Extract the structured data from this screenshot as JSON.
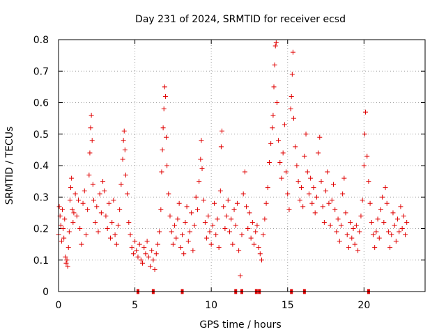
{
  "chart_data": {
    "type": "scatter",
    "title": "Day 231 of 2024, SRMTID for receiver ecsd",
    "xlabel": "GPS time / hours",
    "ylabel": "SRMTID / TECUs",
    "xlim": [
      0,
      24
    ],
    "ylim": [
      0,
      0.8
    ],
    "x_ticks": [
      0,
      5,
      10,
      15,
      20
    ],
    "x_tick_labels": [
      "0",
      "5",
      "10",
      "15",
      "20"
    ],
    "y_ticks": [
      0,
      0.1,
      0.2,
      0.3,
      0.4,
      0.5,
      0.6,
      0.7,
      0.8
    ],
    "y_tick_labels": [
      "0",
      "0.1",
      "0.2",
      "0.3",
      "0.4",
      "0.5",
      "0.6",
      "0.7",
      "0.8"
    ],
    "grid": true,
    "marker": "+",
    "color": "#e00000",
    "zero_markers_x": [
      5.2,
      6.2,
      8.1,
      11.6,
      12.0,
      12.95,
      13.15,
      15.25,
      16.1,
      20.3
    ],
    "series": [
      {
        "name": "SRMTID",
        "points": [
          [
            0.0,
            0.18
          ],
          [
            0.05,
            0.27
          ],
          [
            0.1,
            0.24
          ],
          [
            0.15,
            0.21
          ],
          [
            0.2,
            0.16
          ],
          [
            0.25,
            0.26
          ],
          [
            0.3,
            0.2
          ],
          [
            0.35,
            0.17
          ],
          [
            0.4,
            0.23
          ],
          [
            0.45,
            0.11
          ],
          [
            0.5,
            0.09
          ],
          [
            0.55,
            0.1
          ],
          [
            0.6,
            0.08
          ],
          [
            0.65,
            0.14
          ],
          [
            0.7,
            0.19
          ],
          [
            0.75,
            0.29
          ],
          [
            0.8,
            0.33
          ],
          [
            0.85,
            0.36
          ],
          [
            0.9,
            0.26
          ],
          [
            0.95,
            0.22
          ],
          [
            1.0,
            0.25
          ],
          [
            1.1,
            0.31
          ],
          [
            1.2,
            0.24
          ],
          [
            1.3,
            0.29
          ],
          [
            1.4,
            0.2
          ],
          [
            1.5,
            0.15
          ],
          [
            1.6,
            0.28
          ],
          [
            1.7,
            0.32
          ],
          [
            1.8,
            0.18
          ],
          [
            1.9,
            0.26
          ],
          [
            2.0,
            0.37
          ],
          [
            2.05,
            0.44
          ],
          [
            2.1,
            0.52
          ],
          [
            2.15,
            0.56
          ],
          [
            2.2,
            0.48
          ],
          [
            2.25,
            0.34
          ],
          [
            2.3,
            0.29
          ],
          [
            2.4,
            0.22
          ],
          [
            2.5,
            0.27
          ],
          [
            2.6,
            0.19
          ],
          [
            2.7,
            0.31
          ],
          [
            2.8,
            0.25
          ],
          [
            2.9,
            0.35
          ],
          [
            3.0,
            0.32
          ],
          [
            3.1,
            0.24
          ],
          [
            3.2,
            0.2
          ],
          [
            3.3,
            0.28
          ],
          [
            3.4,
            0.17
          ],
          [
            3.5,
            0.22
          ],
          [
            3.6,
            0.29
          ],
          [
            3.7,
            0.18
          ],
          [
            3.8,
            0.15
          ],
          [
            3.9,
            0.21
          ],
          [
            4.0,
            0.26
          ],
          [
            4.1,
            0.34
          ],
          [
            4.2,
            0.42
          ],
          [
            4.25,
            0.48
          ],
          [
            4.3,
            0.51
          ],
          [
            4.35,
            0.45
          ],
          [
            4.4,
            0.37
          ],
          [
            4.5,
            0.31
          ],
          [
            4.6,
            0.22
          ],
          [
            4.7,
            0.18
          ],
          [
            4.8,
            0.14
          ],
          [
            4.9,
            0.12
          ],
          [
            5.0,
            0.16
          ],
          [
            5.1,
            0.13
          ],
          [
            5.2,
            0.11
          ],
          [
            5.3,
            0.15
          ],
          [
            5.4,
            0.1
          ],
          [
            5.5,
            0.09
          ],
          [
            5.6,
            0.14
          ],
          [
            5.7,
            0.12
          ],
          [
            5.8,
            0.16
          ],
          [
            5.9,
            0.11
          ],
          [
            6.0,
            0.08
          ],
          [
            6.1,
            0.13
          ],
          [
            6.2,
            0.1
          ],
          [
            6.3,
            0.07
          ],
          [
            6.4,
            0.12
          ],
          [
            6.5,
            0.15
          ],
          [
            6.6,
            0.19
          ],
          [
            6.7,
            0.26
          ],
          [
            6.75,
            0.38
          ],
          [
            6.8,
            0.45
          ],
          [
            6.85,
            0.52
          ],
          [
            6.9,
            0.58
          ],
          [
            6.95,
            0.65
          ],
          [
            7.0,
            0.62
          ],
          [
            7.05,
            0.49
          ],
          [
            7.1,
            0.4
          ],
          [
            7.2,
            0.31
          ],
          [
            7.3,
            0.24
          ],
          [
            7.4,
            0.19
          ],
          [
            7.5,
            0.15
          ],
          [
            7.6,
            0.21
          ],
          [
            7.7,
            0.17
          ],
          [
            7.8,
            0.23
          ],
          [
            7.9,
            0.28
          ],
          [
            8.0,
            0.14
          ],
          [
            8.1,
            0.18
          ],
          [
            8.2,
            0.12
          ],
          [
            8.3,
            0.22
          ],
          [
            8.4,
            0.27
          ],
          [
            8.5,
            0.16
          ],
          [
            8.6,
            0.19
          ],
          [
            8.7,
            0.25
          ],
          [
            8.8,
            0.13
          ],
          [
            8.9,
            0.21
          ],
          [
            9.0,
            0.3
          ],
          [
            9.1,
            0.26
          ],
          [
            9.2,
            0.35
          ],
          [
            9.3,
            0.42
          ],
          [
            9.35,
            0.48
          ],
          [
            9.4,
            0.39
          ],
          [
            9.5,
            0.29
          ],
          [
            9.6,
            0.22
          ],
          [
            9.7,
            0.17
          ],
          [
            9.8,
            0.24
          ],
          [
            9.9,
            0.19
          ],
          [
            10.0,
            0.15
          ],
          [
            10.1,
            0.21
          ],
          [
            10.2,
            0.28
          ],
          [
            10.3,
            0.18
          ],
          [
            10.4,
            0.23
          ],
          [
            10.5,
            0.14
          ],
          [
            10.6,
            0.32
          ],
          [
            10.65,
            0.46
          ],
          [
            10.7,
            0.51
          ],
          [
            10.8,
            0.27
          ],
          [
            10.9,
            0.2
          ],
          [
            11.0,
            0.24
          ],
          [
            11.1,
            0.29
          ],
          [
            11.2,
            0.19
          ],
          [
            11.3,
            0.23
          ],
          [
            11.4,
            0.15
          ],
          [
            11.5,
            0.26
          ],
          [
            11.6,
            0.21
          ],
          [
            11.7,
            0.28
          ],
          [
            11.8,
            0.13
          ],
          [
            11.9,
            0.05
          ],
          [
            12.0,
            0.18
          ],
          [
            12.1,
            0.31
          ],
          [
            12.2,
            0.38
          ],
          [
            12.3,
            0.27
          ],
          [
            12.4,
            0.2
          ],
          [
            12.5,
            0.25
          ],
          [
            12.6,
            0.17
          ],
          [
            12.7,
            0.22
          ],
          [
            12.8,
            0.15
          ],
          [
            12.9,
            0.19
          ],
          [
            13.0,
            0.21
          ],
          [
            13.1,
            0.14
          ],
          [
            13.2,
            0.12
          ],
          [
            13.3,
            0.1
          ],
          [
            13.4,
            0.18
          ],
          [
            13.5,
            0.23
          ],
          [
            13.6,
            0.28
          ],
          [
            13.7,
            0.33
          ],
          [
            13.8,
            0.41
          ],
          [
            13.9,
            0.47
          ],
          [
            14.0,
            0.52
          ],
          [
            14.05,
            0.56
          ],
          [
            14.1,
            0.65
          ],
          [
            14.15,
            0.72
          ],
          [
            14.2,
            0.78
          ],
          [
            14.25,
            0.79
          ],
          [
            14.3,
            0.6
          ],
          [
            14.4,
            0.48
          ],
          [
            14.5,
            0.41
          ],
          [
            14.6,
            0.36
          ],
          [
            14.7,
            0.44
          ],
          [
            14.8,
            0.53
          ],
          [
            14.9,
            0.38
          ],
          [
            15.0,
            0.31
          ],
          [
            15.1,
            0.26
          ],
          [
            15.2,
            0.58
          ],
          [
            15.25,
            0.62
          ],
          [
            15.3,
            0.69
          ],
          [
            15.35,
            0.76
          ],
          [
            15.4,
            0.55
          ],
          [
            15.5,
            0.46
          ],
          [
            15.6,
            0.4
          ],
          [
            15.7,
            0.35
          ],
          [
            15.8,
            0.29
          ],
          [
            15.9,
            0.33
          ],
          [
            16.0,
            0.27
          ],
          [
            16.1,
            0.43
          ],
          [
            16.2,
            0.5
          ],
          [
            16.3,
            0.38
          ],
          [
            16.4,
            0.31
          ],
          [
            16.5,
            0.36
          ],
          [
            16.6,
            0.28
          ],
          [
            16.7,
            0.33
          ],
          [
            16.8,
            0.25
          ],
          [
            16.9,
            0.3
          ],
          [
            17.0,
            0.44
          ],
          [
            17.1,
            0.49
          ],
          [
            17.2,
            0.35
          ],
          [
            17.3,
            0.27
          ],
          [
            17.4,
            0.22
          ],
          [
            17.5,
            0.32
          ],
          [
            17.6,
            0.38
          ],
          [
            17.7,
            0.28
          ],
          [
            17.8,
            0.21
          ],
          [
            17.9,
            0.29
          ],
          [
            18.0,
            0.34
          ],
          [
            18.1,
            0.26
          ],
          [
            18.2,
            0.19
          ],
          [
            18.3,
            0.23
          ],
          [
            18.4,
            0.16
          ],
          [
            18.5,
            0.21
          ],
          [
            18.6,
            0.31
          ],
          [
            18.7,
            0.36
          ],
          [
            18.8,
            0.25
          ],
          [
            18.9,
            0.18
          ],
          [
            19.0,
            0.14
          ],
          [
            19.1,
            0.22
          ],
          [
            19.2,
            0.17
          ],
          [
            19.3,
            0.2
          ],
          [
            19.4,
            0.15
          ],
          [
            19.5,
            0.21
          ],
          [
            19.6,
            0.13
          ],
          [
            19.7,
            0.19
          ],
          [
            19.8,
            0.24
          ],
          [
            19.9,
            0.29
          ],
          [
            20.0,
            0.4
          ],
          [
            20.05,
            0.5
          ],
          [
            20.1,
            0.57
          ],
          [
            20.2,
            0.43
          ],
          [
            20.3,
            0.35
          ],
          [
            20.4,
            0.28
          ],
          [
            20.5,
            0.22
          ],
          [
            20.6,
            0.18
          ],
          [
            20.7,
            0.14
          ],
          [
            20.8,
            0.19
          ],
          [
            20.9,
            0.23
          ],
          [
            21.0,
            0.17
          ],
          [
            21.1,
            0.26
          ],
          [
            21.2,
            0.3
          ],
          [
            21.3,
            0.22
          ],
          [
            21.4,
            0.33
          ],
          [
            21.5,
            0.28
          ],
          [
            21.6,
            0.19
          ],
          [
            21.7,
            0.14
          ],
          [
            21.8,
            0.18
          ],
          [
            21.9,
            0.25
          ],
          [
            22.0,
            0.21
          ],
          [
            22.1,
            0.16
          ],
          [
            22.2,
            0.23
          ],
          [
            22.3,
            0.19
          ],
          [
            22.4,
            0.27
          ],
          [
            22.5,
            0.2
          ],
          [
            22.6,
            0.24
          ],
          [
            22.7,
            0.18
          ],
          [
            22.8,
            0.22
          ]
        ]
      }
    ]
  }
}
